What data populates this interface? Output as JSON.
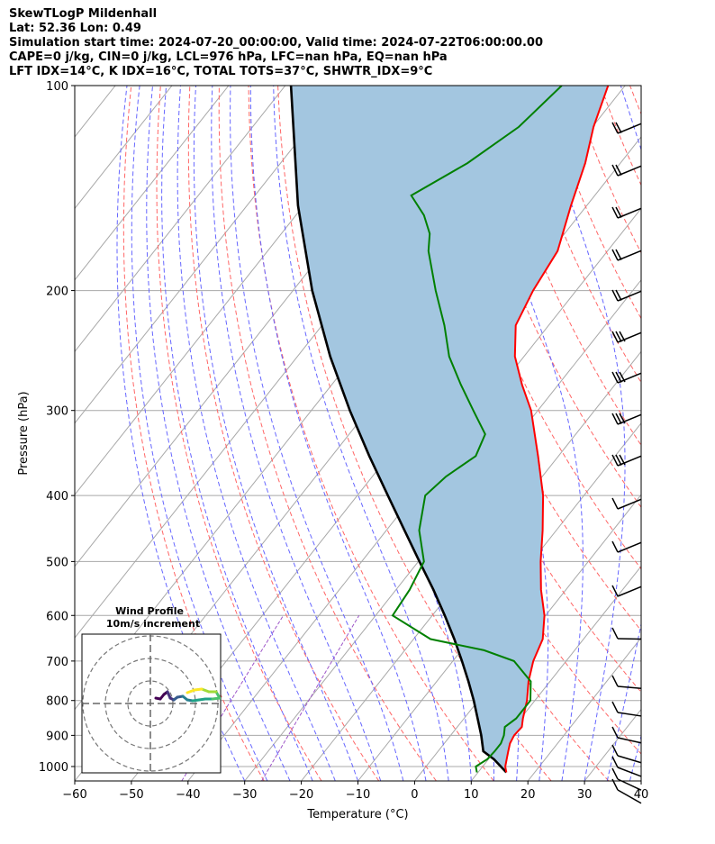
{
  "header": {
    "lines": [
      "SkewTLogP Mildenhall",
      "Lat: 52.36   Lon: 0.49",
      "Simulation start time: 2024-07-20_00:00:00, Valid time: 2024-07-22T06:00:00.00",
      "CAPE=0 j/kg, CIN=0 j/kg, LCL=976 hPa, LFC=nan hPa, EQ=nan hPa",
      "LFT IDX=14°C, K IDX=16°C, TOTAL TOTS=37°C, SHWTR_IDX=9°C"
    ]
  },
  "chart_data": {
    "type": "line",
    "subtype": "skew-T log-P",
    "xlabel": "Temperature (°C)",
    "ylabel": "Pressure (hPa)",
    "xlim": [
      -60,
      40
    ],
    "ylim": [
      1050,
      100
    ],
    "x_ticks": [
      "−60",
      "−50",
      "−40",
      "−30",
      "−20",
      "−10",
      "0",
      "10",
      "20",
      "30",
      "40"
    ],
    "y_ticks": [
      "100",
      "200",
      "300",
      "400",
      "500",
      "600",
      "700",
      "800",
      "900",
      "1000"
    ],
    "grid": true,
    "colors": {
      "temperature": "#ff0000",
      "dewpoint": "#008000",
      "parcel": "#000000",
      "shading": "#a3c6e0",
      "dry_adiabats": "#ff6666",
      "moist_adiabats": "#6666ff",
      "mixing_ratio": "#9d55c8",
      "isotherms": "#a8a8a8"
    },
    "series": [
      {
        "role": "temperature",
        "points": [
          [
            1020,
            15.0
          ],
          [
            1000,
            14.0
          ],
          [
            975,
            13.2
          ],
          [
            950,
            12.4
          ],
          [
            925,
            11.6
          ],
          [
            900,
            11.2
          ],
          [
            875,
            11.4
          ],
          [
            850,
            10.4
          ],
          [
            800,
            8.6
          ],
          [
            750,
            6.2
          ],
          [
            700,
            4.2
          ],
          [
            650,
            2.8
          ],
          [
            600,
            -0.2
          ],
          [
            550,
            -4.4
          ],
          [
            500,
            -8.4
          ],
          [
            450,
            -12.4
          ],
          [
            400,
            -17.2
          ],
          [
            350,
            -23.6
          ],
          [
            300,
            -31.2
          ],
          [
            275,
            -36.4
          ],
          [
            250,
            -41.6
          ],
          [
            225,
            -45.8
          ],
          [
            200,
            -47.6
          ],
          [
            175,
            -48.8
          ],
          [
            150,
            -52.8
          ],
          [
            130,
            -56.2
          ],
          [
            115,
            -59.8
          ],
          [
            100,
            -63.0
          ]
        ]
      },
      {
        "role": "dewpoint",
        "points": [
          [
            1020,
            9.8
          ],
          [
            1000,
            8.8
          ],
          [
            975,
            9.8
          ],
          [
            950,
            10.0
          ],
          [
            925,
            10.0
          ],
          [
            900,
            9.4
          ],
          [
            875,
            8.4
          ],
          [
            850,
            9.2
          ],
          [
            800,
            9.2
          ],
          [
            750,
            6.6
          ],
          [
            700,
            0.8
          ],
          [
            675,
            -6.0
          ],
          [
            650,
            -17.0
          ],
          [
            600,
            -27.0
          ],
          [
            550,
            -27.6
          ],
          [
            500,
            -29.0
          ],
          [
            450,
            -34.2
          ],
          [
            400,
            -38.0
          ],
          [
            375,
            -37.0
          ],
          [
            350,
            -34.6
          ],
          [
            325,
            -36.0
          ],
          [
            300,
            -41.4
          ],
          [
            275,
            -47.2
          ],
          [
            250,
            -53.2
          ],
          [
            225,
            -58.4
          ],
          [
            200,
            -64.8
          ],
          [
            175,
            -71.6
          ],
          [
            165,
            -73.8
          ],
          [
            155,
            -77.4
          ],
          [
            145,
            -82.4
          ],
          [
            130,
            -77.0
          ],
          [
            115,
            -73.0
          ],
          [
            100,
            -71.2
          ]
        ]
      },
      {
        "role": "parcel",
        "points": [
          [
            1020,
            15.0
          ],
          [
            976,
            11.0
          ],
          [
            950,
            8.0
          ],
          [
            900,
            5.4
          ],
          [
            850,
            2.4
          ],
          [
            800,
            -0.8
          ],
          [
            750,
            -4.4
          ],
          [
            700,
            -8.4
          ],
          [
            650,
            -12.8
          ],
          [
            600,
            -17.8
          ],
          [
            550,
            -23.4
          ],
          [
            500,
            -29.8
          ],
          [
            450,
            -36.8
          ],
          [
            400,
            -44.6
          ],
          [
            350,
            -53.4
          ],
          [
            300,
            -63.2
          ],
          [
            250,
            -74.2
          ],
          [
            200,
            -86.6
          ],
          [
            150,
            -101.0
          ],
          [
            100,
            -119.0
          ]
        ]
      }
    ],
    "wind_profile": {
      "title": "Wind Profile",
      "subtitle": "10m/s increment"
    }
  }
}
